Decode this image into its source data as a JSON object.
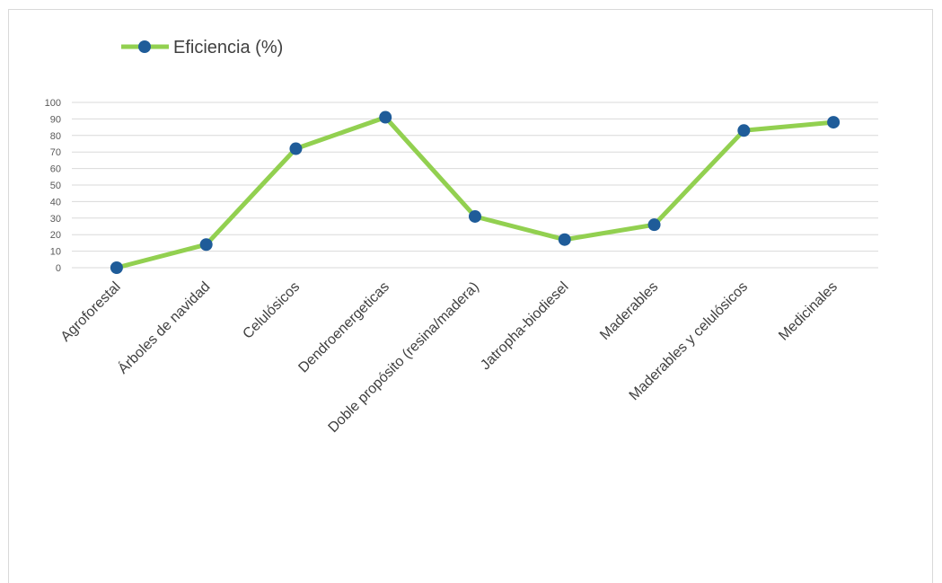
{
  "chart_data": {
    "type": "line",
    "categories": [
      "Agroforestal",
      "Árboles de navidad",
      "Celulósicos",
      "Dendroenergeticas",
      "Doble propósito (resina/madera)",
      "Jatropha-biodiesel",
      "Maderables",
      "Maderables y celulósicos",
      "Medicinales"
    ],
    "series": [
      {
        "name": "Eficiencia  (%)",
        "values": [
          0,
          14,
          72,
          91,
          31,
          17,
          26,
          83,
          88
        ]
      }
    ],
    "ylim": [
      0,
      100
    ],
    "yticks": [
      "0",
      "10",
      "20",
      "30",
      "40",
      "50",
      "60",
      "70",
      "80",
      "90",
      "100"
    ],
    "grid": true,
    "legend": "top-left",
    "colors": {
      "line": "#92d050",
      "marker": "#1f5c99"
    }
  }
}
